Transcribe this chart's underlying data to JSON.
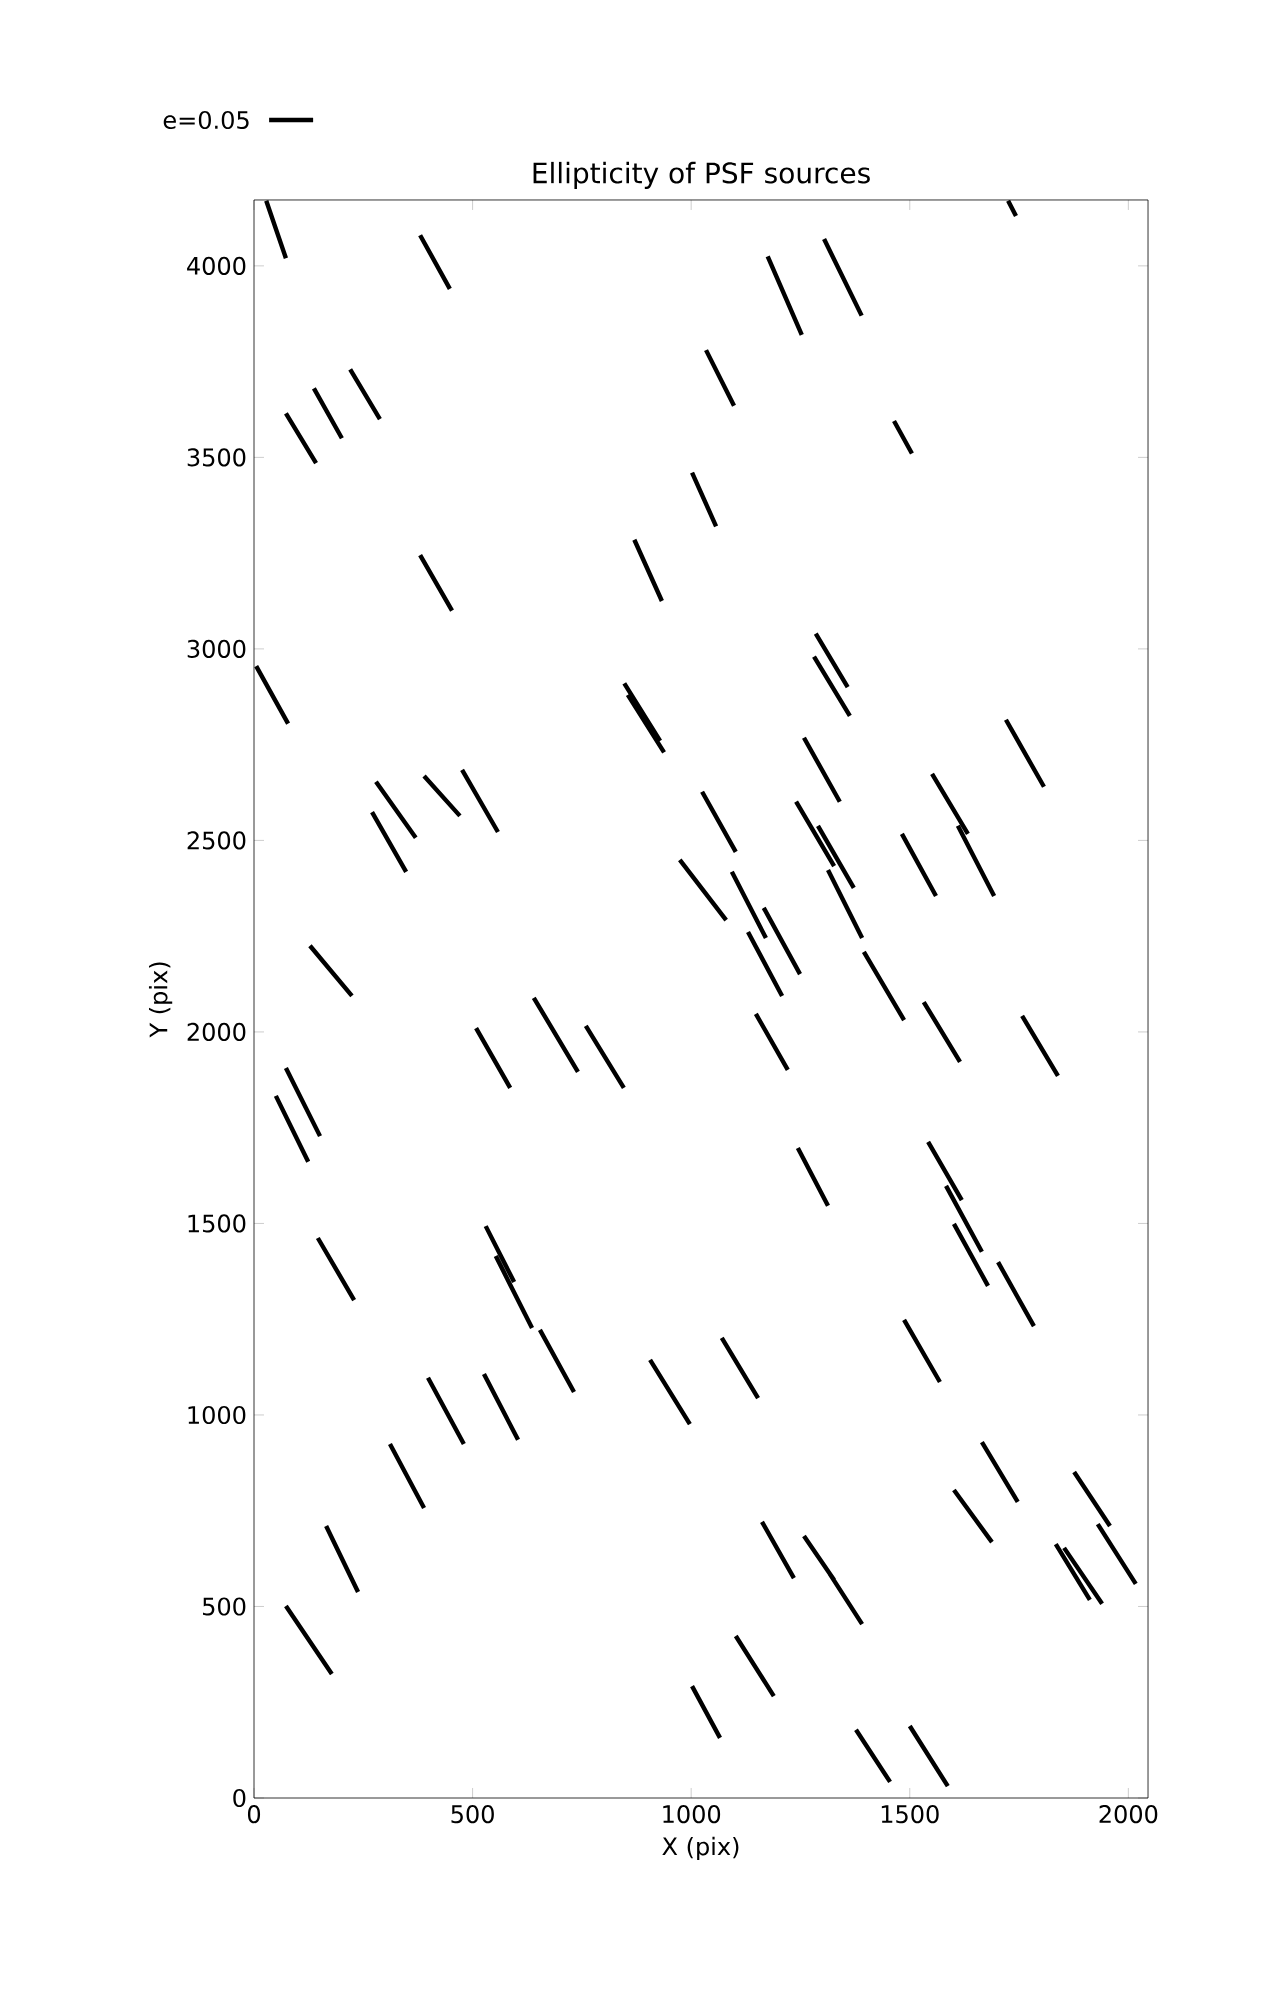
{
  "chart_data": {
    "type": "line",
    "title": "Ellipticity of PSF sources",
    "xlabel": "X (pix)",
    "ylabel": "Y (pix)",
    "annotations": [
      "e=0.05"
    ],
    "xlim": [
      0,
      2045
    ],
    "ylim": [
      0,
      4172
    ],
    "xticks": [
      0,
      500,
      1000,
      1500,
      2000
    ],
    "yticks": [
      0,
      500,
      1000,
      1500,
      2000,
      2500,
      3000,
      3500,
      4000
    ],
    "marker": "none",
    "line_style": "solid",
    "series": [
      {
        "color": "#000000",
        "x": [
          28,
          73,
          null,
          380,
          448,
          null,
          73,
          142,
          null,
          137,
          201,
          null,
          220,
          288,
          null,
          380,
          453,
          null,
          5,
          78,
          null,
          870,
          933,
          null,
          847,
          929,
          null,
          855,
          938,
          null,
          1175,
          1253,
          null,
          1304,
          1390,
          null,
          1034,
          1098,
          null,
          1002,
          1057,
          null,
          1725,
          1743,
          null,
          1464,
          1505,
          null,
          1285,
          1358,
          null,
          1281,
          1363,
          null,
          1720,
          1807,
          null,
          279,
          370,
          null,
          270,
          348,
          null,
          389,
          471,
          null,
          476,
          558,
          null,
          128,
          224,
          null,
          508,
          586,
          null,
          640,
          741,
          null,
          759,
          846,
          null,
          73,
          151,
          null,
          50,
          124,
          null,
          146,
          229,
          null,
          530,
          595,
          null,
          553,
          636,
          null,
          974,
          1080,
          null,
          1258,
          1340,
          null,
          1025,
          1102,
          null,
          1240,
          1327,
          null,
          1290,
          1372,
          null,
          1551,
          1633,
          null,
          1482,
          1560,
          null,
          1610,
          1693,
          null,
          1093,
          1171,
          null,
          1166,
          1249,
          null,
          1130,
          1208,
          null,
          1313,
          1391,
          null,
          1395,
          1487,
          null,
          1148,
          1221,
          null,
          1532,
          1615,
          null,
          1757,
          1839,
          null,
          1244,
          1313,
          null,
          1542,
          1619,
          null,
          1583,
          1665,
          null,
          1601,
          1679,
          null,
          1702,
          1784,
          null,
          654,
          732,
          null,
          906,
          997,
          null,
          398,
          480,
          null,
          526,
          604,
          null,
          311,
          389,
          null,
          165,
          238,
          null,
          73,
          178,
          null,
          1002,
          1066,
          null,
          1070,
          1153,
          null,
          1487,
          1569,
          null,
          1665,
          1747,
          null,
          1601,
          1688,
          null,
          1876,
          1958,
          null,
          1930,
          2017,
          null,
          1834,
          1912,
          null,
          1853,
          1940,
          null,
          1162,
          1235,
          null,
          1258,
          1327,
          null,
          1317,
          1391,
          null,
          1102,
          1189,
          null,
          1377,
          1455,
          null,
          1500,
          1587
        ],
        "values": [
          4170,
          4020,
          null,
          4080,
          3940,
          null,
          3615,
          3485,
          null,
          3680,
          3550,
          null,
          3730,
          3600,
          null,
          3245,
          3100,
          null,
          2955,
          2805,
          null,
          3285,
          3125,
          null,
          2910,
          2760,
          null,
          2880,
          2730,
          null,
          4025,
          3820,
          null,
          4070,
          3870,
          null,
          3780,
          3635,
          null,
          3460,
          3320,
          null,
          4170,
          4130,
          null,
          3595,
          3510,
          null,
          3040,
          2900,
          null,
          2980,
          2825,
          null,
          2815,
          2640,
          null,
          2653,
          2507,
          null,
          2574,
          2418,
          null,
          2668,
          2564,
          null,
          2684,
          2522,
          null,
          2225,
          2094,
          null,
          2010,
          1854,
          null,
          2089,
          1896,
          null,
          2016,
          1854,
          null,
          1906,
          1728,
          null,
          1833,
          1661,
          null,
          1462,
          1300,
          null,
          1493,
          1347,
          null,
          1415,
          1227,
          null,
          2449,
          2292,
          null,
          2768,
          2601,
          null,
          2627,
          2470,
          null,
          2601,
          2433,
          null,
          2538,
          2376,
          null,
          2674,
          2517,
          null,
          2517,
          2355,
          null,
          2538,
          2355,
          null,
          2418,
          2245,
          null,
          2324,
          2151,
          null,
          2261,
          2094,
          null,
          2423,
          2245,
          null,
          2209,
          2031,
          null,
          2047,
          1901,
          null,
          2078,
          1922,
          null,
          2042,
          1885,
          null,
          1697,
          1546,
          null,
          1713,
          1561,
          null,
          1598,
          1426,
          null,
          1499,
          1337,
          null,
          1399,
          1232,
          null,
          1222,
          1060,
          null,
          1144,
          976,
          null,
          1097,
          924,
          null,
          1107,
          935,
          null,
          924,
          757,
          null,
          710,
          538,
          null,
          501,
          324,
          null,
          292,
          157,
          null,
          1201,
          1044,
          null,
          1248,
          1086,
          null,
          929,
          773,
          null,
          804,
          668,
          null,
          851,
          710,
          null,
          715,
          559,
          null,
          663,
          517,
          null,
          653,
          507,
          null,
          721,
          574,
          null,
          684,
          569,
          null,
          585,
          454,
          null,
          423,
          266,
          null,
          178,
          42,
          null,
          188,
          31
        ]
      }
    ]
  }
}
